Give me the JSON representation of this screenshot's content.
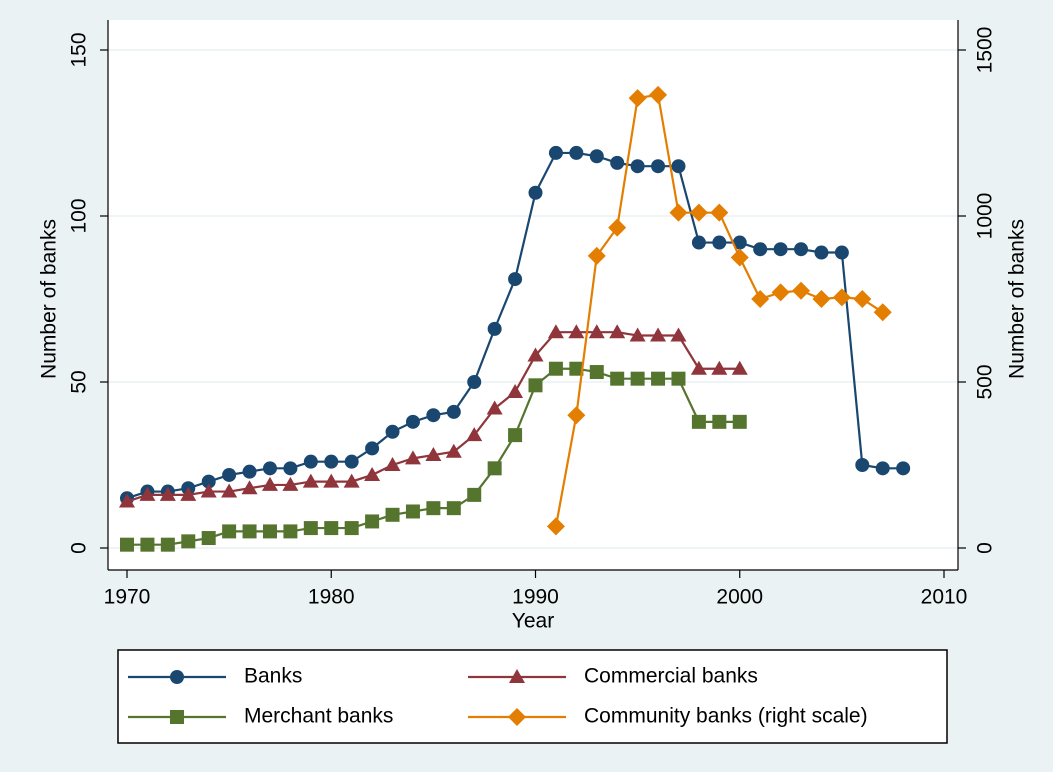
{
  "chart_data": {
    "type": "line",
    "xlabel": "Year",
    "ylabel": "Number of banks",
    "y2label": "Number of banks",
    "x": [
      1970,
      1971,
      1972,
      1973,
      1974,
      1975,
      1976,
      1977,
      1978,
      1979,
      1980,
      1981,
      1982,
      1983,
      1984,
      1985,
      1986,
      1987,
      1988,
      1989,
      1990,
      1991,
      1992,
      1993,
      1994,
      1995,
      1996,
      1997,
      1998,
      1999,
      2000,
      2001,
      2002,
      2003,
      2004,
      2005,
      2006,
      2007,
      2008
    ],
    "xlim": [
      1970,
      2010
    ],
    "xticks": [
      1970,
      1980,
      1990,
      2000,
      2010
    ],
    "ylim": [
      0,
      150
    ],
    "yticks": [
      0,
      50,
      100,
      150
    ],
    "y2lim": [
      0,
      1500
    ],
    "y2ticks": [
      0,
      500,
      1000,
      1500
    ],
    "grid": true,
    "legend": "bottom",
    "series": [
      {
        "name": "Banks",
        "color": "#1a476f",
        "marker": "circle",
        "values": [
          15,
          17,
          17,
          18,
          20,
          22,
          23,
          24,
          24,
          26,
          26,
          26,
          30,
          35,
          38,
          40,
          41,
          50,
          66,
          81,
          107,
          119,
          119,
          118,
          116,
          115,
          115,
          115,
          92,
          92,
          92,
          90,
          90,
          90,
          89,
          89,
          25,
          24,
          24
        ]
      },
      {
        "name": "Commercial banks",
        "color": "#90353b",
        "marker": "triangle",
        "values": [
          14,
          16,
          16,
          16,
          17,
          17,
          18,
          19,
          19,
          20,
          20,
          20,
          22,
          25,
          27,
          28,
          29,
          34,
          42,
          47,
          58,
          65,
          65,
          65,
          65,
          64,
          64,
          64,
          54,
          54,
          54,
          null,
          null,
          null,
          null,
          null,
          null,
          null,
          null
        ]
      },
      {
        "name": "Merchant banks",
        "color": "#55752f",
        "marker": "square",
        "values": [
          1,
          1,
          1,
          2,
          3,
          5,
          5,
          5,
          5,
          6,
          6,
          6,
          8,
          10,
          11,
          12,
          12,
          16,
          24,
          34,
          49,
          54,
          54,
          53,
          51,
          51,
          51,
          51,
          38,
          38,
          38,
          null,
          null,
          null,
          null,
          null,
          null,
          null,
          null
        ]
      },
      {
        "name": "Community banks (right scale)",
        "color": "#e37e00",
        "marker": "diamond",
        "axis": "y2",
        "values": [
          null,
          null,
          null,
          null,
          null,
          null,
          null,
          null,
          null,
          null,
          null,
          null,
          null,
          null,
          null,
          null,
          null,
          null,
          null,
          null,
          null,
          65,
          400,
          880,
          965,
          1355,
          1365,
          1010,
          1010,
          1010,
          875,
          750,
          770,
          775,
          750,
          755,
          750,
          710,
          null
        ]
      }
    ]
  }
}
